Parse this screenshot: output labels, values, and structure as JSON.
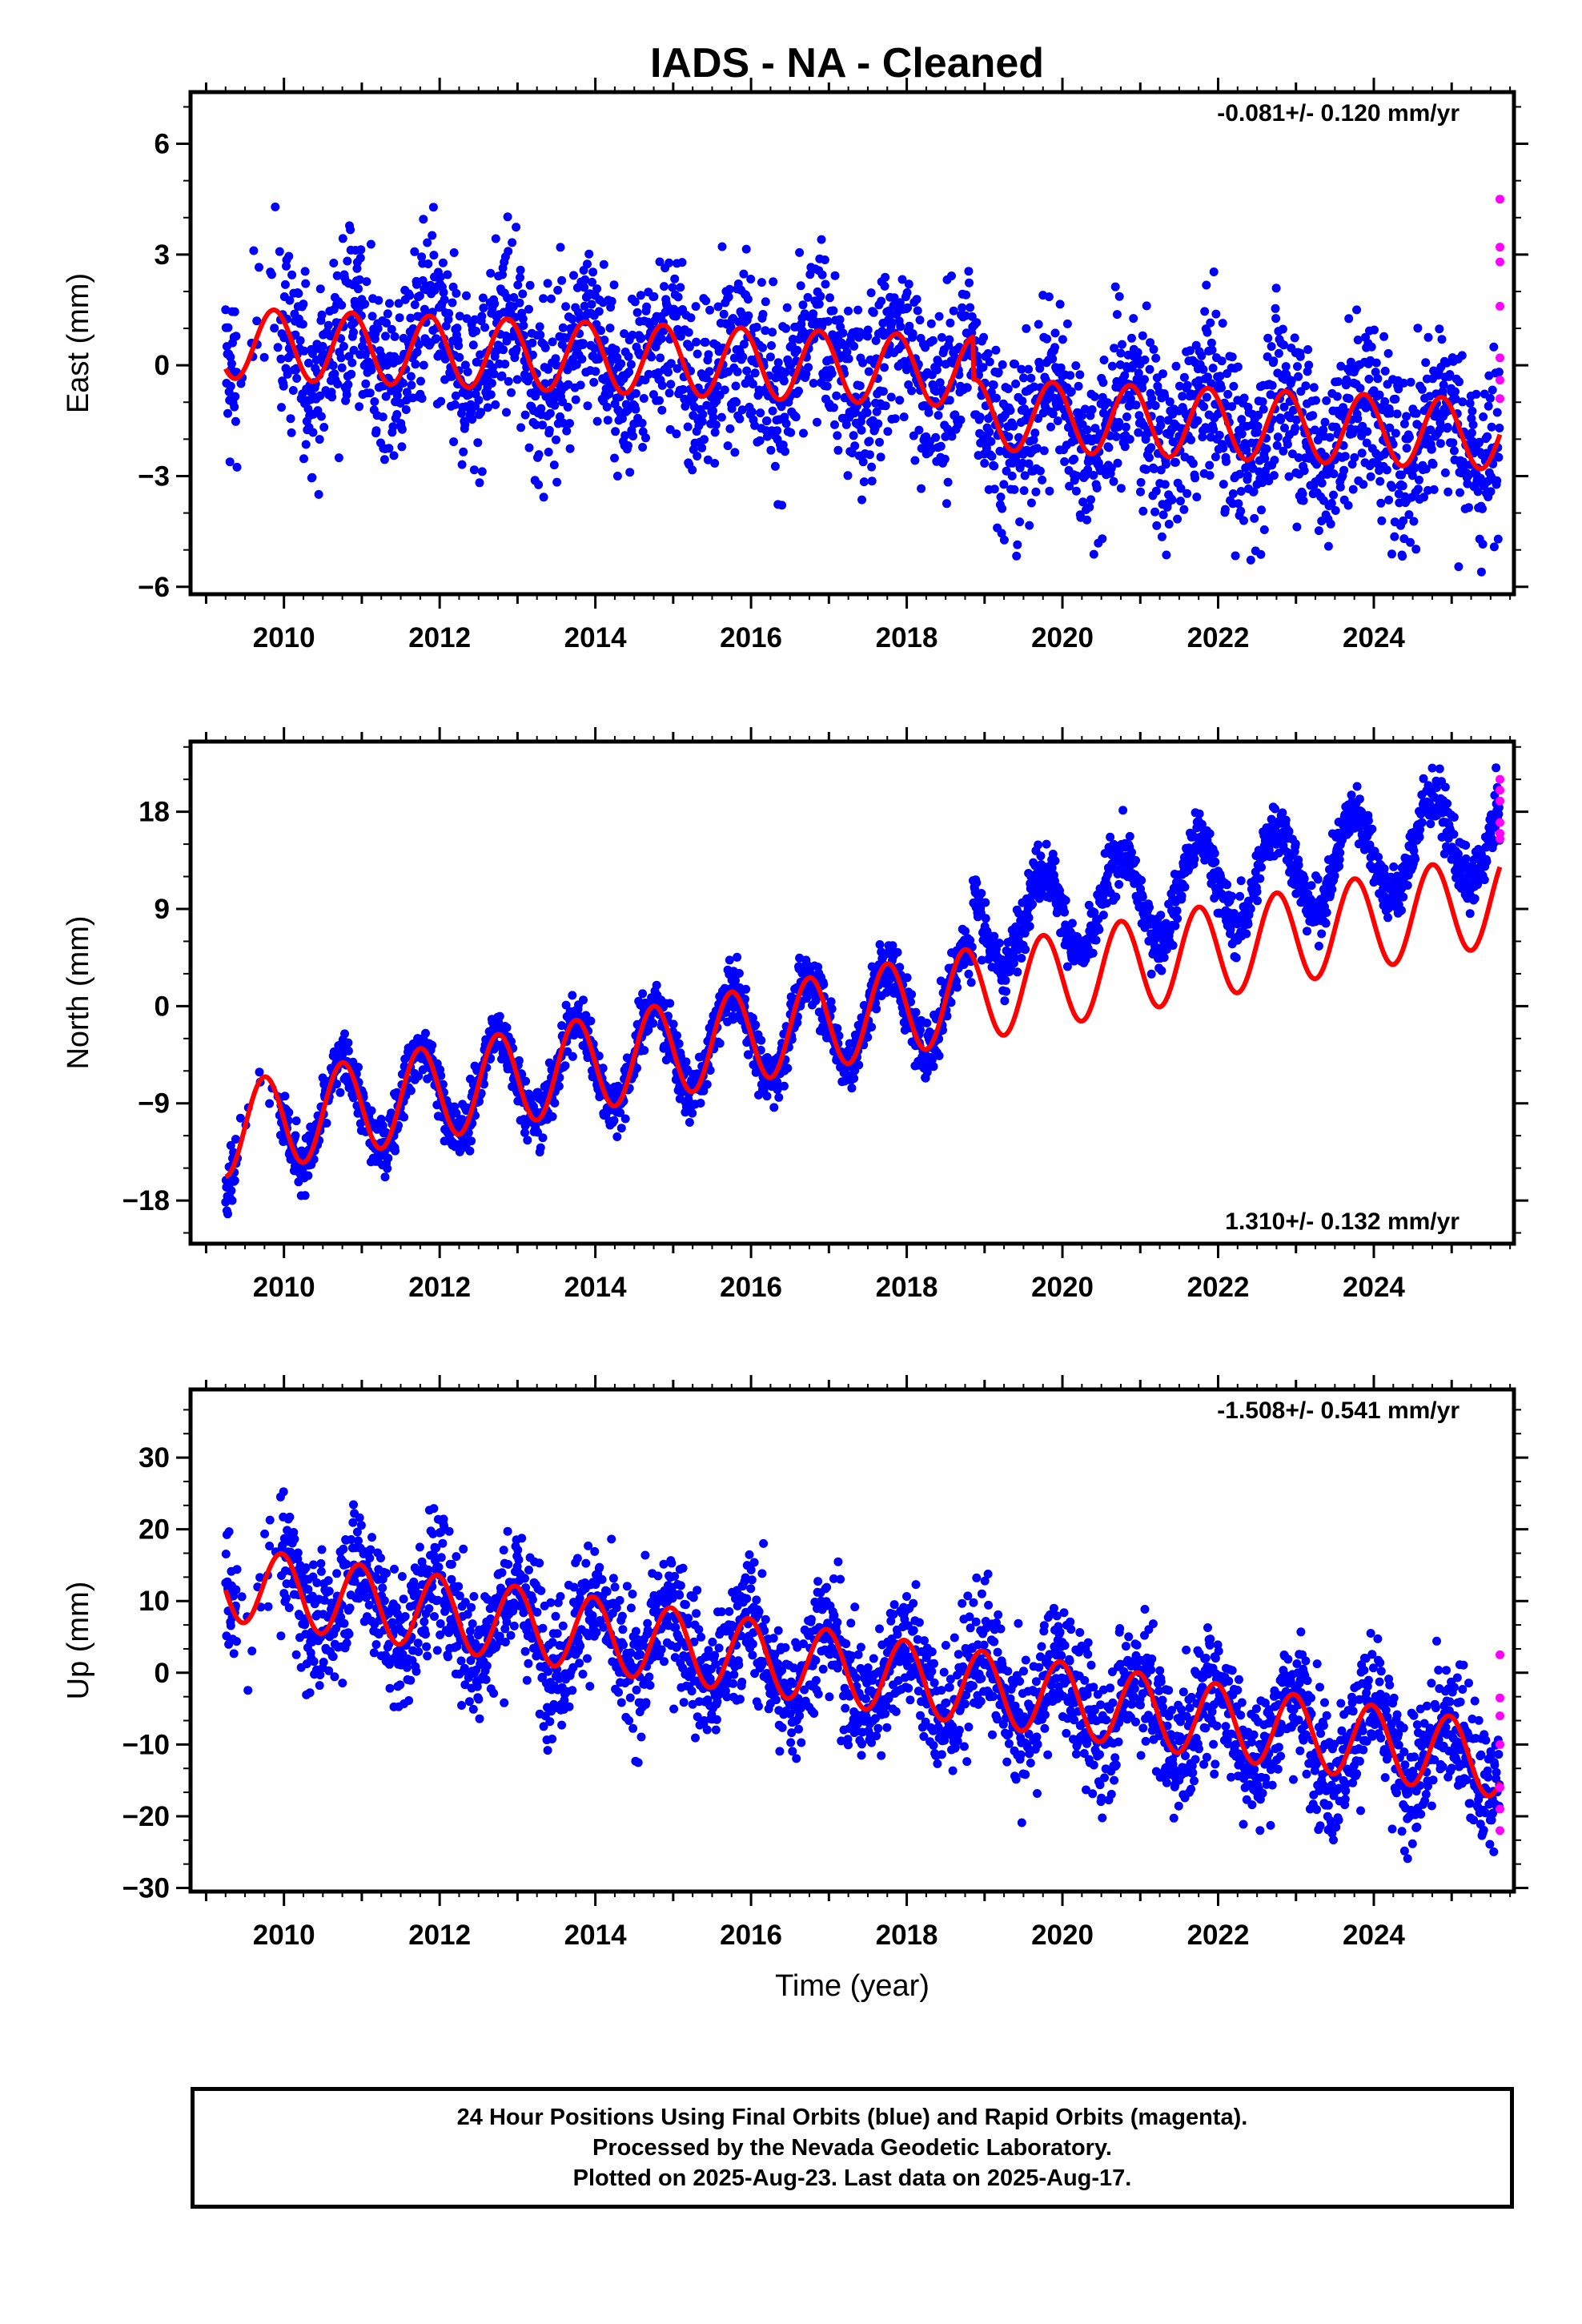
{
  "title": "IADS  - NA - Cleaned",
  "colors": {
    "final": "#0000ff",
    "rapid": "#ff00ff",
    "model": "#ff0000",
    "frame": "#000000"
  },
  "footer": {
    "line1": "24 Hour Positions Using Final Orbits (blue) and Rapid Orbits (magenta).",
    "line2": "Processed by the Nevada Geodetic Laboratory.",
    "line3": "Plotted on 2025-Aug-23. Last data on 2025-Aug-17."
  },
  "chart_data": [
    {
      "type": "scatter",
      "name": "east",
      "ylabel": "East (mm)",
      "xlabel": "",
      "xlim": [
        2008.8,
        2025.8
      ],
      "ylim": [
        -6.2,
        7.4
      ],
      "yticks": [
        6,
        3,
        0,
        -3,
        -6
      ],
      "ytick_labels": [
        "6",
        "3",
        "0",
        "−3",
        "−6"
      ],
      "xticks": [
        2010,
        2012,
        2014,
        2016,
        2018,
        2020,
        2022,
        2024
      ],
      "xtick_labels": [
        "2010",
        "2012",
        "2014",
        "2016",
        "2018",
        "2020",
        "2022",
        "2024"
      ],
      "rate_label": "-0.081+/- 0.120 mm/yr",
      "rate_position": "top-right",
      "data_start": 2009.25,
      "data_end": 2025.62,
      "model": {
        "offset": 0.6,
        "trend": -0.081,
        "amplitude": 0.95,
        "phase": 0.62,
        "steps": [
          {
            "year": 2018.85,
            "size": -1.15
          }
        ]
      },
      "scatter": {
        "count": 2900,
        "noise": 1.2
      },
      "rapid_points": [
        {
          "x": 2025.62,
          "y": 4.5
        },
        {
          "x": 2025.62,
          "y": 3.2
        },
        {
          "x": 2025.62,
          "y": 2.8
        },
        {
          "x": 2025.62,
          "y": 1.6
        },
        {
          "x": 2025.62,
          "y": 0.2
        },
        {
          "x": 2025.62,
          "y": -0.4
        },
        {
          "x": 2025.62,
          "y": -0.9
        }
      ]
    },
    {
      "type": "scatter",
      "name": "north",
      "ylabel": "North (mm)",
      "xlabel": "",
      "xlim": [
        2008.8,
        2025.8
      ],
      "ylim": [
        -22,
        24.5
      ],
      "yticks": [
        18,
        9,
        0,
        -9,
        -18
      ],
      "ytick_labels": [
        "18",
        "9",
        "0",
        "−9",
        "−18"
      ],
      "xticks": [
        2010,
        2012,
        2014,
        2016,
        2018,
        2020,
        2022,
        2024
      ],
      "xtick_labels": [
        "2010",
        "2012",
        "2014",
        "2016",
        "2018",
        "2020",
        "2022",
        "2024"
      ],
      "rate_label": "1.310+/- 0.132 mm/yr",
      "rate_position": "bottom-right",
      "data_start": 2009.25,
      "data_end": 2025.62,
      "model": {
        "offset": -11.5,
        "trend": 1.31,
        "amplitude": 4.3,
        "phase": 0.5,
        "steps": []
      },
      "data_steps": [
        {
          "year": 2018.85,
          "size": 6.2
        }
      ],
      "scatter": {
        "count": 2900,
        "noise": 1.3
      },
      "rapid_points": [
        {
          "x": 2025.62,
          "y": 21
        },
        {
          "x": 2025.62,
          "y": 20
        },
        {
          "x": 2025.62,
          "y": 19
        },
        {
          "x": 2025.62,
          "y": 17
        },
        {
          "x": 2025.62,
          "y": 16
        },
        {
          "x": 2025.62,
          "y": 15.5
        }
      ]
    },
    {
      "type": "scatter",
      "name": "up",
      "ylabel": "Up (mm)",
      "xlabel": "Time (year)",
      "xlim": [
        2008.8,
        2025.8
      ],
      "ylim": [
        -30.5,
        39.5
      ],
      "yticks": [
        30,
        20,
        10,
        0,
        -10,
        -20,
        -30
      ],
      "ytick_labels": [
        "30",
        "20",
        "10",
        "0",
        "−10",
        "−20",
        "−30"
      ],
      "xticks": [
        2010,
        2012,
        2014,
        2016,
        2018,
        2020,
        2022,
        2024
      ],
      "xtick_labels": [
        "2010",
        "2012",
        "2014",
        "2016",
        "2018",
        "2020",
        "2022",
        "2024"
      ],
      "rate_label": "-1.508+/- 0.541 mm/yr",
      "rate_position": "top-right",
      "data_start": 2009.25,
      "data_end": 2025.62,
      "model": {
        "offset": 12.5,
        "trend": -1.508,
        "amplitude": 5.2,
        "phase": 0.72,
        "steps": []
      },
      "scatter": {
        "count": 2900,
        "noise": 4.6
      },
      "rapid_points": [
        {
          "x": 2025.62,
          "y": 2.5
        },
        {
          "x": 2025.62,
          "y": -3.5
        },
        {
          "x": 2025.62,
          "y": -6
        },
        {
          "x": 2025.62,
          "y": -10
        },
        {
          "x": 2025.62,
          "y": -16
        },
        {
          "x": 2025.62,
          "y": -19
        },
        {
          "x": 2025.62,
          "y": -22
        }
      ]
    }
  ]
}
